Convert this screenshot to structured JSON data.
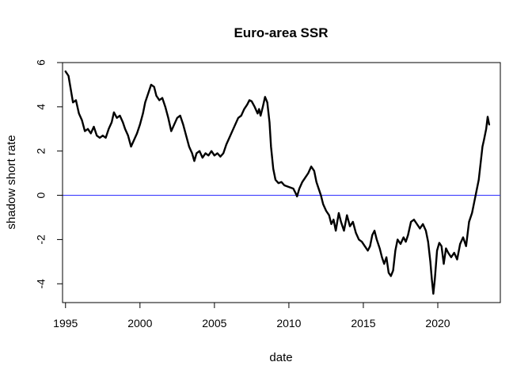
{
  "chart_data": {
    "type": "line",
    "title": "Euro-area SSR",
    "xlabel": "date",
    "ylabel": "shadow short rate",
    "xlim": [
      1994.8,
      2024.2
    ],
    "ylim": [
      -4.85,
      6.0
    ],
    "x_ticks": [
      1995,
      2000,
      2005,
      2010,
      2015,
      2020
    ],
    "y_ticks": [
      -4,
      -2,
      0,
      2,
      4,
      6
    ],
    "x_tick_labels": [
      "1995",
      "2000",
      "2005",
      "2010",
      "2015",
      "2020"
    ],
    "y_tick_labels": [
      "-4",
      "-2",
      "0",
      "2",
      "4",
      "6"
    ],
    "grid": false,
    "legend": "none",
    "reference_line": {
      "y": 0,
      "color": "#3b3bff"
    },
    "series": [
      {
        "color": "#000000",
        "points": [
          [
            1995.0,
            5.6
          ],
          [
            1995.2,
            5.4
          ],
          [
            1995.35,
            4.8
          ],
          [
            1995.5,
            4.2
          ],
          [
            1995.7,
            4.3
          ],
          [
            1995.9,
            3.7
          ],
          [
            1996.1,
            3.4
          ],
          [
            1996.3,
            2.9
          ],
          [
            1996.5,
            3.0
          ],
          [
            1996.7,
            2.8
          ],
          [
            1996.9,
            3.1
          ],
          [
            1997.1,
            2.7
          ],
          [
            1997.3,
            2.6
          ],
          [
            1997.5,
            2.7
          ],
          [
            1997.7,
            2.6
          ],
          [
            1997.9,
            3.0
          ],
          [
            1998.1,
            3.3
          ],
          [
            1998.25,
            3.75
          ],
          [
            1998.45,
            3.5
          ],
          [
            1998.65,
            3.6
          ],
          [
            1998.85,
            3.3
          ],
          [
            1999.0,
            3.0
          ],
          [
            1999.2,
            2.7
          ],
          [
            1999.4,
            2.2
          ],
          [
            1999.6,
            2.5
          ],
          [
            1999.8,
            2.8
          ],
          [
            2000.0,
            3.2
          ],
          [
            2000.2,
            3.7
          ],
          [
            2000.35,
            4.2
          ],
          [
            2000.55,
            4.6
          ],
          [
            2000.75,
            5.0
          ],
          [
            2000.95,
            4.9
          ],
          [
            2001.1,
            4.5
          ],
          [
            2001.3,
            4.3
          ],
          [
            2001.5,
            4.4
          ],
          [
            2001.7,
            4.0
          ],
          [
            2001.9,
            3.5
          ],
          [
            2002.1,
            2.9
          ],
          [
            2002.3,
            3.2
          ],
          [
            2002.5,
            3.5
          ],
          [
            2002.7,
            3.6
          ],
          [
            2002.9,
            3.2
          ],
          [
            2003.1,
            2.7
          ],
          [
            2003.3,
            2.2
          ],
          [
            2003.5,
            1.9
          ],
          [
            2003.65,
            1.55
          ],
          [
            2003.8,
            1.9
          ],
          [
            2004.0,
            2.0
          ],
          [
            2004.2,
            1.7
          ],
          [
            2004.4,
            1.9
          ],
          [
            2004.6,
            1.8
          ],
          [
            2004.8,
            2.0
          ],
          [
            2005.0,
            1.8
          ],
          [
            2005.2,
            1.9
          ],
          [
            2005.4,
            1.75
          ],
          [
            2005.6,
            1.9
          ],
          [
            2005.8,
            2.3
          ],
          [
            2006.0,
            2.6
          ],
          [
            2006.2,
            2.9
          ],
          [
            2006.4,
            3.2
          ],
          [
            2006.6,
            3.5
          ],
          [
            2006.8,
            3.6
          ],
          [
            2007.0,
            3.9
          ],
          [
            2007.2,
            4.1
          ],
          [
            2007.35,
            4.3
          ],
          [
            2007.5,
            4.25
          ],
          [
            2007.7,
            4.0
          ],
          [
            2007.9,
            3.7
          ],
          [
            2008.0,
            3.9
          ],
          [
            2008.1,
            3.6
          ],
          [
            2008.25,
            4.0
          ],
          [
            2008.4,
            4.45
          ],
          [
            2008.55,
            4.2
          ],
          [
            2008.7,
            3.3
          ],
          [
            2008.8,
            2.2
          ],
          [
            2008.95,
            1.2
          ],
          [
            2009.1,
            0.7
          ],
          [
            2009.3,
            0.55
          ],
          [
            2009.5,
            0.6
          ],
          [
            2009.7,
            0.45
          ],
          [
            2009.9,
            0.4
          ],
          [
            2010.1,
            0.35
          ],
          [
            2010.3,
            0.3
          ],
          [
            2010.45,
            0.1
          ],
          [
            2010.55,
            -0.05
          ],
          [
            2010.7,
            0.3
          ],
          [
            2010.9,
            0.6
          ],
          [
            2011.1,
            0.8
          ],
          [
            2011.3,
            1.0
          ],
          [
            2011.5,
            1.3
          ],
          [
            2011.7,
            1.1
          ],
          [
            2011.85,
            0.6
          ],
          [
            2012.0,
            0.3
          ],
          [
            2012.15,
            0.0
          ],
          [
            2012.3,
            -0.4
          ],
          [
            2012.5,
            -0.7
          ],
          [
            2012.7,
            -0.9
          ],
          [
            2012.85,
            -1.3
          ],
          [
            2013.0,
            -1.1
          ],
          [
            2013.15,
            -1.6
          ],
          [
            2013.35,
            -0.8
          ],
          [
            2013.5,
            -1.2
          ],
          [
            2013.7,
            -1.6
          ],
          [
            2013.9,
            -0.9
          ],
          [
            2014.1,
            -1.4
          ],
          [
            2014.3,
            -1.2
          ],
          [
            2014.5,
            -1.7
          ],
          [
            2014.7,
            -2.0
          ],
          [
            2014.9,
            -2.1
          ],
          [
            2015.1,
            -2.3
          ],
          [
            2015.3,
            -2.5
          ],
          [
            2015.45,
            -2.3
          ],
          [
            2015.6,
            -1.8
          ],
          [
            2015.75,
            -1.6
          ],
          [
            2015.9,
            -2.0
          ],
          [
            2016.1,
            -2.4
          ],
          [
            2016.25,
            -2.8
          ],
          [
            2016.4,
            -3.1
          ],
          [
            2016.55,
            -2.8
          ],
          [
            2016.7,
            -3.5
          ],
          [
            2016.85,
            -3.65
          ],
          [
            2017.0,
            -3.4
          ],
          [
            2017.15,
            -2.5
          ],
          [
            2017.3,
            -2.0
          ],
          [
            2017.5,
            -2.2
          ],
          [
            2017.7,
            -1.9
          ],
          [
            2017.85,
            -2.1
          ],
          [
            2018.0,
            -1.8
          ],
          [
            2018.2,
            -1.2
          ],
          [
            2018.4,
            -1.1
          ],
          [
            2018.6,
            -1.3
          ],
          [
            2018.8,
            -1.5
          ],
          [
            2019.0,
            -1.3
          ],
          [
            2019.2,
            -1.6
          ],
          [
            2019.35,
            -2.1
          ],
          [
            2019.5,
            -3.0
          ],
          [
            2019.6,
            -3.8
          ],
          [
            2019.7,
            -4.45
          ],
          [
            2019.8,
            -3.8
          ],
          [
            2019.95,
            -2.5
          ],
          [
            2020.1,
            -2.15
          ],
          [
            2020.25,
            -2.3
          ],
          [
            2020.4,
            -3.1
          ],
          [
            2020.55,
            -2.4
          ],
          [
            2020.7,
            -2.6
          ],
          [
            2020.9,
            -2.8
          ],
          [
            2021.1,
            -2.6
          ],
          [
            2021.3,
            -2.9
          ],
          [
            2021.5,
            -2.2
          ],
          [
            2021.7,
            -1.9
          ],
          [
            2021.9,
            -2.3
          ],
          [
            2022.1,
            -1.2
          ],
          [
            2022.3,
            -0.8
          ],
          [
            2022.45,
            -0.3
          ],
          [
            2022.6,
            0.2
          ],
          [
            2022.75,
            0.7
          ],
          [
            2022.9,
            1.6
          ],
          [
            2023.0,
            2.2
          ],
          [
            2023.1,
            2.5
          ],
          [
            2023.25,
            3.0
          ],
          [
            2023.35,
            3.55
          ],
          [
            2023.45,
            3.2
          ]
        ]
      }
    ]
  }
}
